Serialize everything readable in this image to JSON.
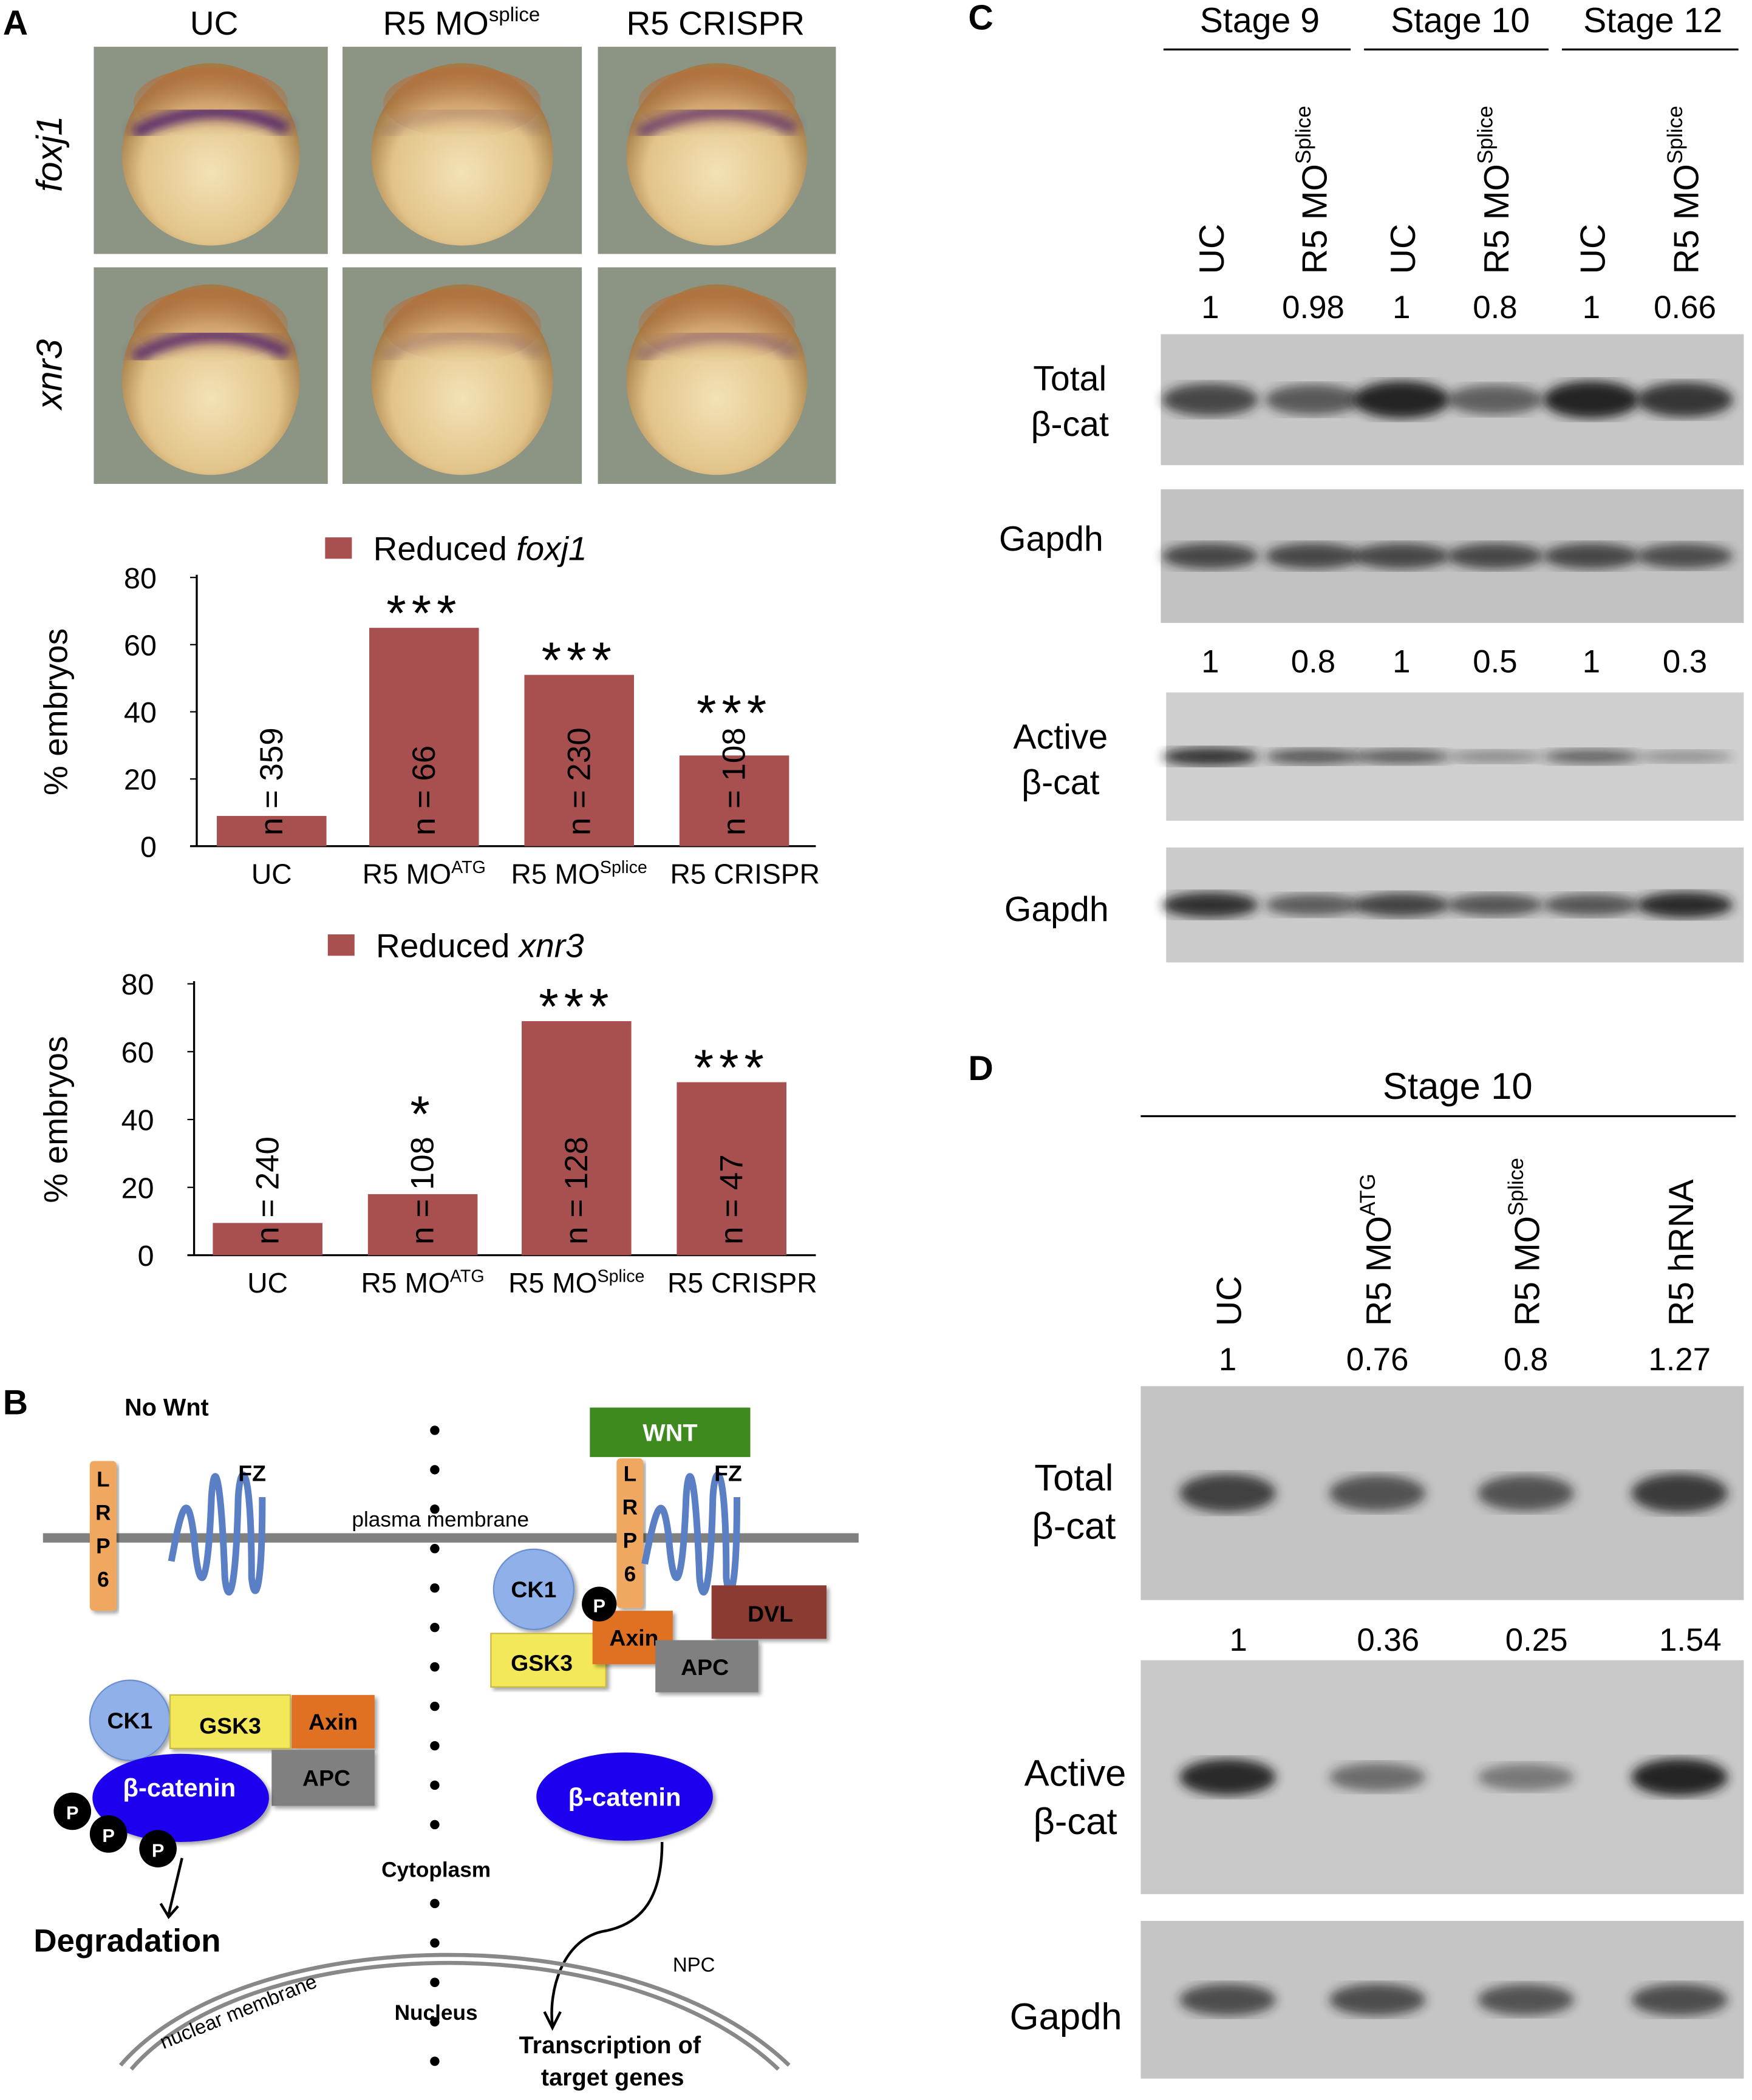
{
  "panel_a": {
    "label": "A",
    "columns": [
      "UC",
      "R5 MO",
      "R5 CRISPR"
    ],
    "column_sup": "splice",
    "rows": [
      "foxj1",
      "xnr3"
    ]
  },
  "chart_data": [
    {
      "type": "bar",
      "legend": "Reduced ",
      "legend_gene": "foxj1",
      "ylabel": "% embryos",
      "ylim": [
        0,
        80
      ],
      "yticks": [
        "0",
        "20",
        "40",
        "60",
        "80"
      ],
      "categories": [
        {
          "main": "UC",
          "sup": ""
        },
        {
          "main": "R5 MO",
          "sup": "ATG"
        },
        {
          "main": "R5 MO",
          "sup": "Splice"
        },
        {
          "main": "R5 CRISPR",
          "sup": ""
        }
      ],
      "values": [
        9,
        65,
        51,
        27
      ],
      "n_labels": [
        "n = 359",
        "n = 66",
        "n = 230",
        "n = 108"
      ],
      "significance": [
        "",
        "***",
        "***",
        "***"
      ],
      "color": "#a85050"
    },
    {
      "type": "bar",
      "legend": "Reduced ",
      "legend_gene": "xnr3",
      "ylabel": "% embryos",
      "ylim": [
        0,
        80
      ],
      "yticks": [
        "0",
        "20",
        "40",
        "60",
        "80"
      ],
      "categories": [
        {
          "main": "UC",
          "sup": ""
        },
        {
          "main": "R5 MO",
          "sup": "ATG"
        },
        {
          "main": "R5 MO",
          "sup": "Splice"
        },
        {
          "main": "R5 CRISPR",
          "sup": ""
        }
      ],
      "values": [
        9.5,
        18,
        69,
        51
      ],
      "n_labels": [
        "n = 240",
        "n = 108",
        "n = 128",
        "n = 47"
      ],
      "significance": [
        "",
        "*",
        "***",
        "***"
      ],
      "color": "#a85050"
    }
  ],
  "panel_b": {
    "label": "B",
    "no_wnt": "No Wnt",
    "wnt": "WNT",
    "lrp6": [
      "L",
      "R",
      "P",
      "6"
    ],
    "fz": "FZ",
    "plasma_membrane": "plasma membrane",
    "ck1": "CK1",
    "gsk3": "GSK3",
    "axin": "Axin",
    "apc": "APC",
    "dvl": "DVL",
    "p": "P",
    "beta_catenin": "β-catenin",
    "degradation": "Degradation",
    "cytoplasm": "Cytoplasm",
    "nucleus": "Nucleus",
    "nuclear_membrane": "nuclear membrane",
    "npc": "NPC",
    "transcription": [
      "Transcription of",
      "target genes"
    ],
    "colors": {
      "wnt": "#3f8a1f",
      "lrp6": "#f0a860",
      "fz": "#5b7fc4",
      "ck1": "#8fb0e8",
      "gsk3": "#f3e85a",
      "axin": "#e07020",
      "apc": "#808080",
      "dvl": "#8b3a32",
      "beta_catenin": "#1a00ee"
    }
  },
  "panel_c": {
    "label": "C",
    "stages": [
      "Stage 9",
      "Stage 10",
      "Stage 12"
    ],
    "lanes": [
      {
        "main": "UC",
        "sup": ""
      },
      {
        "main": "R5 MO",
        "sup": "Splice"
      },
      {
        "main": "UC",
        "sup": ""
      },
      {
        "main": "R5 MO",
        "sup": "Splice"
      },
      {
        "main": "UC",
        "sup": ""
      },
      {
        "main": "R5 MO",
        "sup": "Splice"
      }
    ],
    "total_quant": [
      "1",
      "0.98",
      "1",
      "0.8",
      "1",
      "0.66"
    ],
    "active_quant": [
      "1",
      "0.8",
      "1",
      "0.5",
      "1",
      "0.3"
    ],
    "blot_labels": {
      "total": [
        "Total",
        "β-cat"
      ],
      "gapdh": "Gapdh",
      "active": [
        "Active",
        "β-cat"
      ]
    }
  },
  "panel_d": {
    "label": "D",
    "stage": "Stage 10",
    "lanes": [
      {
        "main": "UC",
        "sup": ""
      },
      {
        "main": "R5 MO",
        "sup": "ATG"
      },
      {
        "main": "R5 MO",
        "sup": "Splice"
      },
      {
        "main": "R5 hRNA",
        "sup": ""
      }
    ],
    "total_quant": [
      "1",
      "0.76",
      "0.8",
      "1.27"
    ],
    "active_quant": [
      "1",
      "0.36",
      "0.25",
      "1.54"
    ],
    "blot_labels": {
      "total": [
        "Total",
        "β-cat"
      ],
      "active": [
        "Active",
        "β-cat"
      ],
      "gapdh": "Gapdh"
    }
  }
}
